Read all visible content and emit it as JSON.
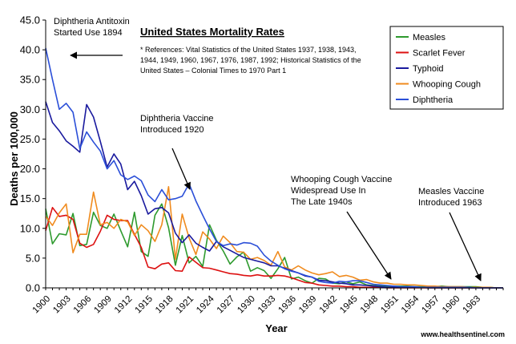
{
  "chart_data": {
    "type": "line",
    "title": "United States Mortality Rates",
    "xlabel": "Year",
    "ylabel": "Deaths per 100,000",
    "xlim": [
      1900,
      1967
    ],
    "ylim": [
      0,
      45
    ],
    "y_ticks": [
      "0.0",
      "5.0",
      "10.0",
      "15.0",
      "20.0",
      "25.0",
      "30.0",
      "35.0",
      "40.0",
      "45.0"
    ],
    "x_ticks": [
      "1900",
      "1903",
      "1906",
      "1909",
      "1912",
      "1915",
      "1918",
      "1921",
      "1924",
      "1927",
      "1930",
      "1933",
      "1936",
      "1939",
      "1942",
      "1945",
      "1948",
      "1951",
      "1954",
      "1957",
      "1960",
      "1963"
    ],
    "grid": false,
    "legend_position": "top-right",
    "references": [
      "* References: Vital Statistics of the United States 1937, 1938, 1943,",
      "1944, 1949, 1960, 1967, 1976, 1987, 1992; Historical Statistics of the",
      "United States – Colonial Times to 1970 Part 1"
    ],
    "source": "www.healthsentinel.com",
    "annotations": [
      {
        "lines": [
          "Diphtheria Antitoxin",
          "Started Use 1894"
        ]
      },
      {
        "lines": [
          "Diphtheria Vaccine",
          "Introduced 1920"
        ]
      },
      {
        "lines": [
          "Whooping Cough Vaccine",
          "Widespread Use In",
          "The Late 1940s"
        ]
      },
      {
        "lines": [
          "Measles Vaccine",
          "Introduced 1963"
        ]
      }
    ],
    "series": [
      {
        "name": "Measles",
        "color": "#2e9a2e",
        "x": [
          1900,
          1901,
          1902,
          1903,
          1904,
          1905,
          1906,
          1907,
          1908,
          1909,
          1910,
          1911,
          1912,
          1913,
          1914,
          1915,
          1916,
          1917,
          1918,
          1919,
          1920,
          1921,
          1922,
          1923,
          1924,
          1925,
          1926,
          1927,
          1928,
          1929,
          1930,
          1931,
          1932,
          1933,
          1934,
          1935,
          1936,
          1937,
          1938,
          1939,
          1940,
          1941,
          1942,
          1943,
          1944,
          1945,
          1946,
          1947,
          1948,
          1949,
          1950,
          1951,
          1952,
          1953,
          1954,
          1955,
          1956,
          1957,
          1958,
          1959,
          1960,
          1961,
          1962,
          1963,
          1964,
          1965,
          1966,
          1967
        ],
        "y": [
          13.3,
          7.4,
          9.1,
          8.9,
          12.5,
          7.1,
          7.3,
          12.7,
          10.5,
          10.0,
          12.4,
          9.6,
          6.9,
          12.7,
          6.1,
          5.3,
          12.2,
          14.1,
          10.1,
          3.8,
          8.8,
          4.2,
          5.3,
          3.6,
          10.6,
          8.0,
          6.2,
          4.0,
          5.2,
          6.0,
          2.8,
          3.4,
          2.9,
          1.6,
          3.2,
          5.1,
          1.5,
          1.8,
          1.2,
          0.8,
          1.6,
          1.5,
          0.8,
          0.7,
          1.0,
          0.7,
          1.0,
          0.5,
          0.4,
          0.3,
          0.3,
          0.3,
          0.3,
          0.3,
          0.2,
          0.2,
          0.3,
          0.2,
          0.3,
          0.2,
          0.2,
          0.2,
          0.2,
          0.2,
          0.1,
          0.1,
          0.0,
          0.0
        ]
      },
      {
        "name": "Scarlet Fever",
        "color": "#dd1111",
        "x": [
          1900,
          1901,
          1902,
          1903,
          1904,
          1905,
          1906,
          1907,
          1908,
          1909,
          1910,
          1911,
          1912,
          1913,
          1914,
          1915,
          1916,
          1917,
          1918,
          1919,
          1920,
          1921,
          1922,
          1923,
          1924,
          1925,
          1926,
          1927,
          1928,
          1929,
          1930,
          1931,
          1932,
          1933,
          1934,
          1935,
          1936,
          1937,
          1938,
          1939,
          1940,
          1941,
          1942,
          1943,
          1944,
          1945,
          1946,
          1947,
          1948,
          1949,
          1950,
          1951,
          1952,
          1953,
          1954,
          1955,
          1956,
          1957,
          1958,
          1959,
          1960,
          1961,
          1962,
          1963,
          1964,
          1965,
          1966,
          1967
        ],
        "y": [
          9.6,
          13.5,
          12.0,
          12.2,
          11.5,
          7.5,
          6.8,
          7.3,
          9.5,
          12.2,
          11.5,
          11.3,
          11.3,
          9.0,
          6.8,
          3.5,
          3.2,
          4.0,
          4.2,
          2.9,
          2.8,
          5.2,
          4.3,
          3.4,
          3.3,
          3.0,
          2.7,
          2.4,
          2.3,
          2.1,
          2.0,
          2.2,
          2.0,
          2.0,
          2.1,
          2.0,
          1.7,
          1.3,
          0.9,
          0.8,
          0.5,
          0.4,
          0.3,
          0.3,
          0.2,
          0.2,
          0.1,
          0.1,
          0.1,
          0.1,
          0.0,
          0.0,
          0.0,
          0.0,
          0.0,
          0.0,
          0.0,
          0.0,
          0.0,
          0.0,
          0.0,
          0.0,
          0.0,
          0.0,
          0.0,
          0.0,
          0.0,
          0.0
        ]
      },
      {
        "name": "Typhoid",
        "color": "#1a1a9e",
        "x": [
          1900,
          1901,
          1902,
          1903,
          1904,
          1905,
          1906,
          1907,
          1908,
          1909,
          1910,
          1911,
          1912,
          1913,
          1914,
          1915,
          1916,
          1917,
          1918,
          1919,
          1920,
          1921,
          1922,
          1923,
          1924,
          1925,
          1926,
          1927,
          1928,
          1929,
          1930,
          1931,
          1932,
          1933,
          1934,
          1935,
          1936,
          1937,
          1938,
          1939,
          1940,
          1941,
          1942,
          1943,
          1944,
          1945,
          1946,
          1947,
          1948,
          1949,
          1950,
          1951,
          1952,
          1953,
          1954,
          1955,
          1956,
          1957,
          1958,
          1959,
          1960,
          1961,
          1962,
          1963,
          1964,
          1965,
          1966,
          1967
        ],
        "y": [
          31.3,
          27.8,
          26.4,
          24.7,
          23.8,
          22.8,
          30.8,
          28.7,
          24.6,
          20.3,
          22.5,
          20.8,
          16.5,
          17.9,
          15.5,
          12.4,
          13.3,
          13.5,
          12.6,
          9.2,
          7.6,
          8.9,
          7.5,
          6.8,
          6.2,
          7.8,
          6.9,
          6.3,
          5.7,
          5.1,
          4.8,
          4.5,
          4.2,
          3.7,
          3.7,
          3.3,
          2.9,
          2.5,
          2.0,
          1.8,
          1.3,
          1.2,
          1.0,
          0.8,
          0.7,
          0.5,
          0.5,
          0.4,
          0.3,
          0.2,
          0.1,
          0.1,
          0.1,
          0.1,
          0.1,
          0.1,
          0.0,
          0.0,
          0.0,
          0.0,
          0.0,
          0.0,
          0.0,
          0.0,
          0.0,
          0.0,
          0.0,
          0.0
        ]
      },
      {
        "name": "Whooping Cough",
        "color": "#f08b1e",
        "x": [
          1900,
          1901,
          1902,
          1903,
          1904,
          1905,
          1906,
          1907,
          1908,
          1909,
          1910,
          1911,
          1912,
          1913,
          1914,
          1915,
          1916,
          1917,
          1918,
          1919,
          1920,
          1921,
          1922,
          1923,
          1924,
          1925,
          1926,
          1927,
          1928,
          1929,
          1930,
          1931,
          1932,
          1933,
          1934,
          1935,
          1936,
          1937,
          1938,
          1939,
          1940,
          1941,
          1942,
          1943,
          1944,
          1945,
          1946,
          1947,
          1948,
          1949,
          1950,
          1951,
          1952,
          1953,
          1954,
          1955,
          1956,
          1957,
          1958,
          1959,
          1960,
          1961,
          1962,
          1963,
          1964,
          1965,
          1966,
          1967
        ],
        "y": [
          12.0,
          10.5,
          12.6,
          14.1,
          5.9,
          9.0,
          9.0,
          16.1,
          10.6,
          11.0,
          10.0,
          11.5,
          11.1,
          8.8,
          10.6,
          9.6,
          7.8,
          10.6,
          17.0,
          4.8,
          12.4,
          8.4,
          5.6,
          9.4,
          8.2,
          6.6,
          8.7,
          7.6,
          6.1,
          6.0,
          4.8,
          5.1,
          4.6,
          3.8,
          6.1,
          3.5,
          3.0,
          3.7,
          3.0,
          2.5,
          2.2,
          2.4,
          2.7,
          1.9,
          2.1,
          1.8,
          1.3,
          1.4,
          1.0,
          0.8,
          0.8,
          0.6,
          0.6,
          0.5,
          0.5,
          0.4,
          0.3,
          0.3,
          0.2,
          0.2,
          0.2,
          0.2,
          0.1,
          0.1,
          0.1,
          0.1,
          0.0,
          0.0
        ]
      },
      {
        "name": "Diphtheria",
        "color": "#2b4fd8",
        "x": [
          1900,
          1901,
          1902,
          1903,
          1904,
          1905,
          1906,
          1907,
          1908,
          1909,
          1910,
          1911,
          1912,
          1913,
          1914,
          1915,
          1916,
          1917,
          1918,
          1919,
          1920,
          1921,
          1922,
          1923,
          1924,
          1925,
          1926,
          1927,
          1928,
          1929,
          1930,
          1931,
          1932,
          1933,
          1934,
          1935,
          1936,
          1937,
          1938,
          1939,
          1940,
          1941,
          1942,
          1943,
          1944,
          1945,
          1946,
          1947,
          1948,
          1949,
          1950,
          1951,
          1952,
          1953,
          1954,
          1955,
          1956,
          1957,
          1958,
          1959,
          1960,
          1961,
          1962,
          1963,
          1964,
          1965,
          1966,
          1967
        ],
        "y": [
          40.3,
          35.0,
          30.0,
          31.0,
          29.5,
          23.4,
          26.2,
          24.5,
          23.0,
          20.0,
          21.4,
          19.0,
          18.2,
          18.8,
          18.0,
          15.6,
          14.5,
          16.5,
          14.8,
          15.0,
          15.4,
          17.5,
          14.6,
          12.2,
          9.9,
          7.8,
          7.1,
          7.4,
          7.2,
          7.6,
          7.5,
          7.0,
          5.5,
          4.5,
          3.8,
          3.2,
          2.8,
          2.5,
          2.1,
          1.8,
          1.1,
          0.9,
          0.8,
          1.1,
          1.0,
          1.2,
          1.2,
          0.9,
          0.6,
          0.5,
          0.4,
          0.3,
          0.2,
          0.2,
          0.2,
          0.1,
          0.1,
          0.1,
          0.1,
          0.1,
          0.1,
          0.1,
          0.1,
          0.0,
          0.0,
          0.0,
          0.0,
          0.0
        ]
      }
    ]
  }
}
